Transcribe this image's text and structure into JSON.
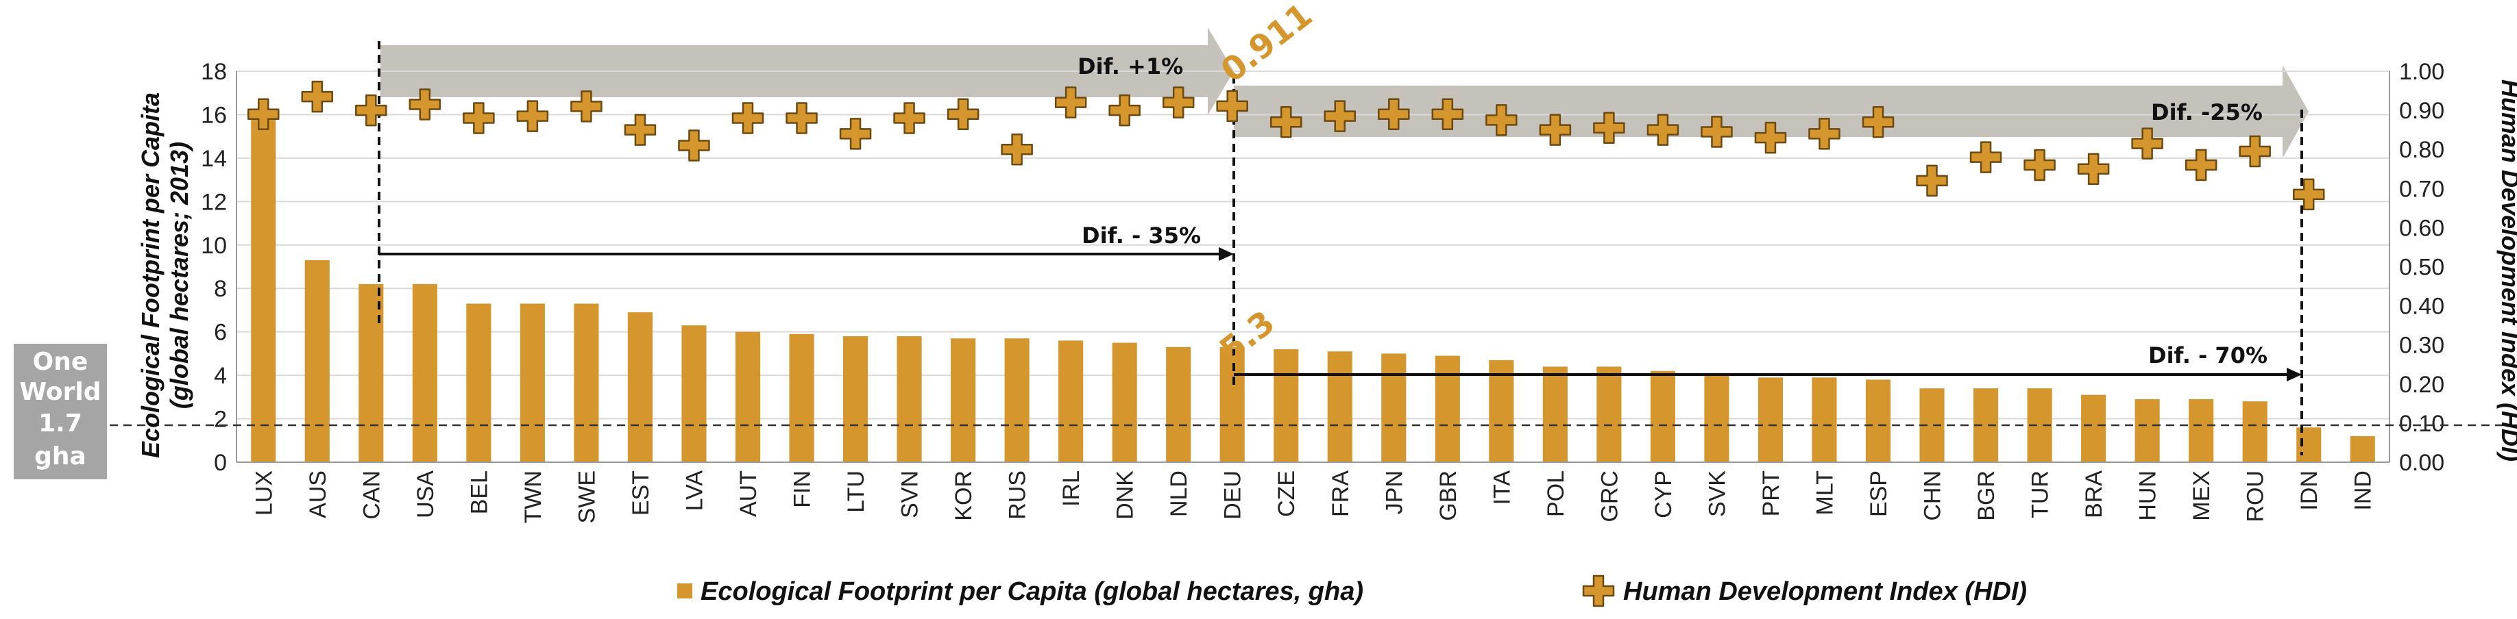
{
  "chart_data": {
    "type": "bar",
    "categories": [
      "LUX",
      "AUS",
      "CAN",
      "USA",
      "BEL",
      "TWN",
      "SWE",
      "EST",
      "LVA",
      "AUT",
      "FIN",
      "LTU",
      "SVN",
      "KOR",
      "RUS",
      "IRL",
      "DNK",
      "NLD",
      "DEU",
      "CZE",
      "FRA",
      "JPN",
      "GBR",
      "ITA",
      "POL",
      "GRC",
      "CYP",
      "SVK",
      "PRT",
      "MLT",
      "ESP",
      "CHN",
      "BGR",
      "TUR",
      "BRA",
      "HUN",
      "MEX",
      "ROU",
      "IDN",
      "IND"
    ],
    "series": [
      {
        "name": "Ecological Footprint per Capita (global hectares, gha)",
        "axis": "left",
        "values": [
          15.8,
          9.3,
          8.2,
          8.2,
          7.3,
          7.3,
          7.3,
          6.9,
          6.3,
          6.0,
          5.9,
          5.8,
          5.8,
          5.7,
          5.7,
          5.6,
          5.5,
          5.3,
          5.3,
          5.2,
          5.1,
          5.0,
          4.9,
          4.7,
          4.4,
          4.4,
          4.2,
          4.1,
          3.9,
          3.9,
          3.8,
          3.4,
          3.4,
          3.4,
          3.1,
          2.9,
          2.9,
          2.8,
          1.6,
          1.2
        ]
      },
      {
        "name": "Human Development Index (HDI)",
        "axis": "right",
        "values": [
          0.89,
          0.935,
          0.9,
          0.915,
          0.88,
          0.885,
          0.91,
          0.85,
          0.81,
          0.88,
          0.88,
          0.84,
          0.88,
          0.89,
          0.8,
          0.92,
          0.9,
          0.92,
          0.911,
          0.87,
          0.885,
          0.89,
          0.89,
          0.875,
          0.85,
          0.855,
          0.85,
          0.845,
          0.83,
          0.84,
          0.87,
          0.72,
          0.78,
          0.76,
          0.75,
          0.815,
          0.76,
          0.795,
          0.685,
          null
        ]
      }
    ],
    "y_left": {
      "label_line1": "Ecological Footprint per Capita",
      "label_line2": "(global hectares; 2013)",
      "ylim": [
        0,
        18
      ],
      "ticks": [
        "0",
        "2",
        "4",
        "6",
        "8",
        "10",
        "12",
        "14",
        "16",
        "18"
      ]
    },
    "y_right": {
      "label": "Human Development Index (HDI)",
      "ylim": [
        0,
        1
      ],
      "ticks": [
        "0.00",
        "0.10",
        "0.20",
        "0.30",
        "0.40",
        "0.50",
        "0.60",
        "0.70",
        "0.80",
        "0.90",
        "1.00"
      ]
    },
    "reference_line": {
      "value": 1.7,
      "label_lines": [
        "One",
        "World",
        "1.7",
        "gha"
      ]
    },
    "annotations": {
      "dif_top_left": "Dif. +1%",
      "dif_top_right": "Dif. -25%",
      "dif_mid": "Dif. - 35%",
      "dif_low": "Dif. - 70%",
      "deu_hdi": "0.911",
      "deu_ef": "5.3"
    },
    "legend": {
      "position": "bottom-center",
      "items": [
        "Ecological Footprint per Capita (global hectares, gha)",
        "Human Development Index (HDI)"
      ]
    },
    "grid": true
  },
  "colors": {
    "bar": "#D6962E",
    "marker": "#D6962E",
    "marker_edge": "#6B4A12",
    "arrow": "#C5C2BB",
    "grid": "#D9D9D9",
    "badge": "#A5A5A5"
  }
}
